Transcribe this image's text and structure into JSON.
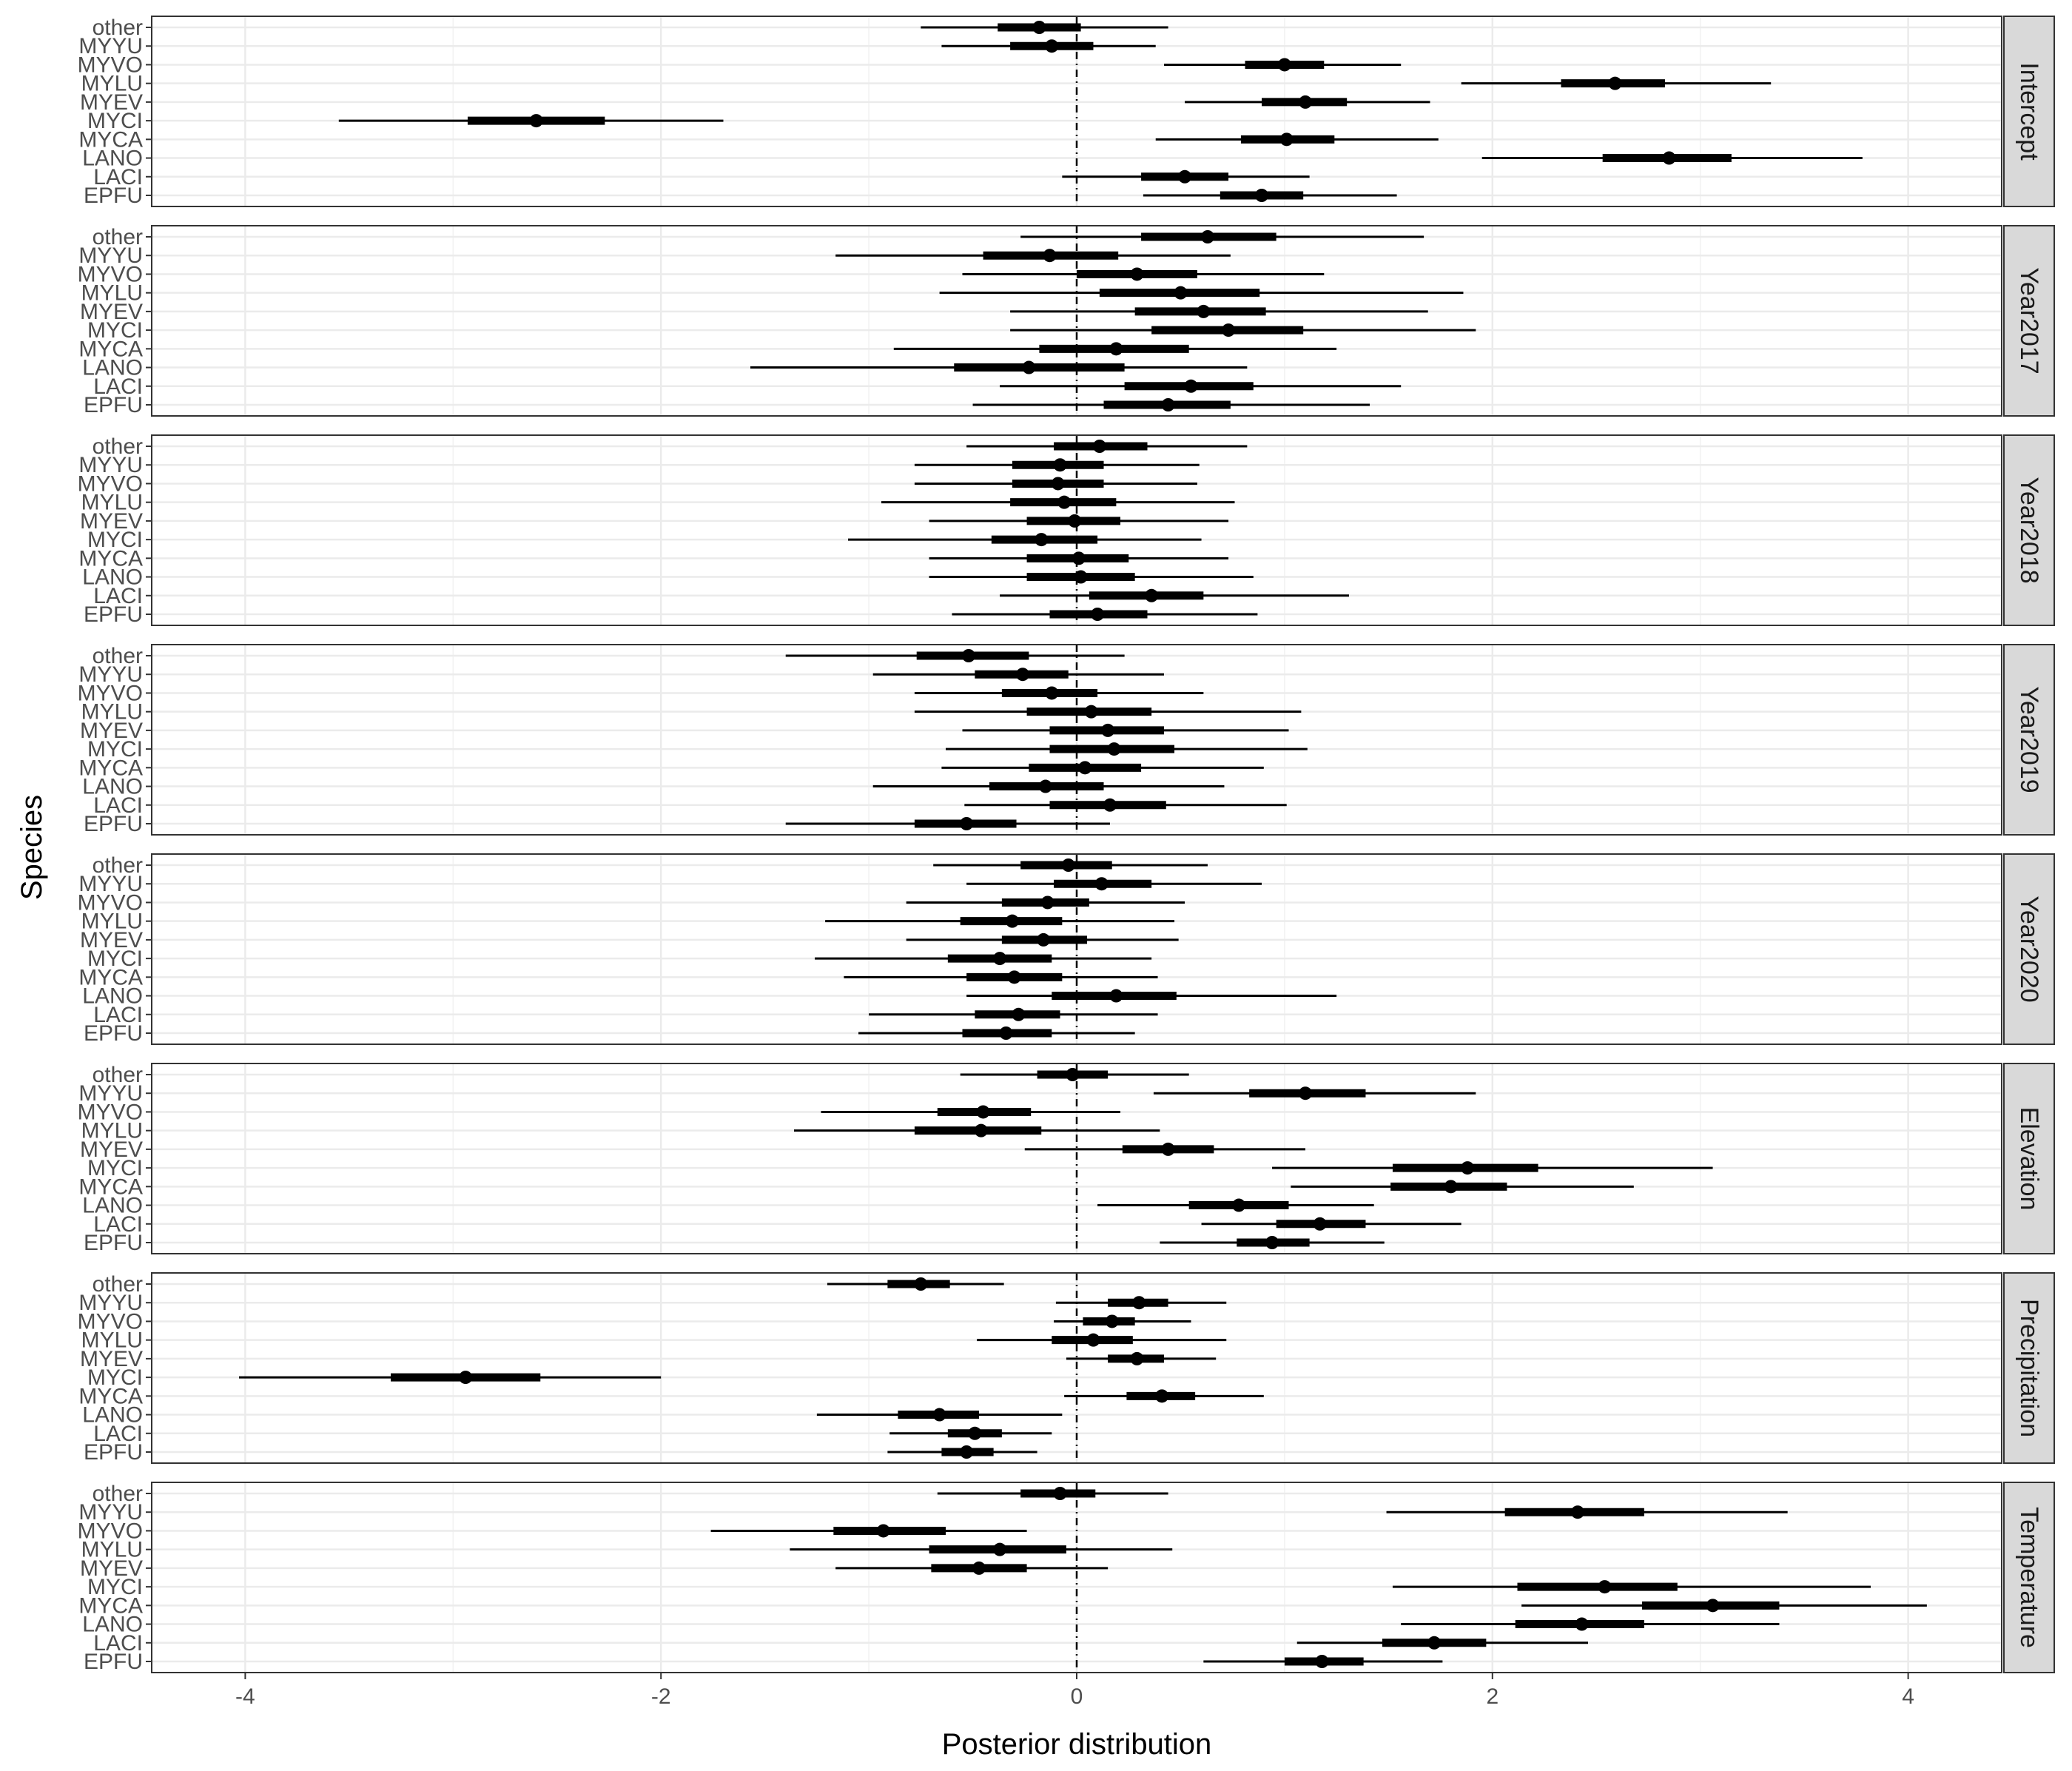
{
  "chart_data": {
    "type": "pointrange-facet",
    "xlabel": "Posterior distribution",
    "ylabel": "Species",
    "xlim": [
      -4.45,
      4.45
    ],
    "x_ticks": [
      -4,
      -2,
      0,
      2,
      4
    ],
    "x_tick_labels": [
      "-4",
      "-2",
      "0",
      "2",
      "4"
    ],
    "reference_line": 0,
    "grid": true,
    "species": [
      "other",
      "MYYU",
      "MYVO",
      "MYLU",
      "MYEV",
      "MYCI",
      "MYCA",
      "LANO",
      "LACI",
      "EPFU"
    ],
    "interval_columns": [
      "lo_outer",
      "lo_inner",
      "median",
      "hi_inner",
      "hi_outer"
    ],
    "panels": [
      {
        "name": "Intercept",
        "rows": [
          [
            -0.75,
            -0.38,
            -0.18,
            0.02,
            0.44
          ],
          [
            -0.65,
            -0.32,
            -0.12,
            0.08,
            0.38
          ],
          [
            0.42,
            0.81,
            1.0,
            1.19,
            1.56
          ],
          [
            1.85,
            2.33,
            2.59,
            2.83,
            3.34
          ],
          [
            0.52,
            0.89,
            1.1,
            1.3,
            1.7
          ],
          [
            -3.55,
            -2.93,
            -2.6,
            -2.27,
            -1.7
          ],
          [
            0.38,
            0.79,
            1.01,
            1.24,
            1.74
          ],
          [
            1.95,
            2.53,
            2.85,
            3.15,
            3.78
          ],
          [
            -0.07,
            0.31,
            0.52,
            0.73,
            1.12
          ],
          [
            0.32,
            0.69,
            0.89,
            1.09,
            1.54
          ]
        ]
      },
      {
        "name": "Year2017",
        "rows": [
          [
            -0.27,
            0.31,
            0.63,
            0.96,
            1.67
          ],
          [
            -1.16,
            -0.45,
            -0.13,
            0.2,
            0.74
          ],
          [
            -0.55,
            0.0,
            0.29,
            0.58,
            1.19
          ],
          [
            -0.66,
            0.11,
            0.5,
            0.88,
            1.86
          ],
          [
            -0.32,
            0.28,
            0.61,
            0.91,
            1.69
          ],
          [
            -0.32,
            0.36,
            0.73,
            1.09,
            1.92
          ],
          [
            -0.88,
            -0.18,
            0.19,
            0.54,
            1.25
          ],
          [
            -1.57,
            -0.59,
            -0.23,
            0.23,
            0.82
          ],
          [
            -0.37,
            0.23,
            0.55,
            0.85,
            1.56
          ],
          [
            -0.5,
            0.13,
            0.44,
            0.74,
            1.41
          ]
        ]
      },
      {
        "name": "Year2018",
        "rows": [
          [
            -0.53,
            -0.11,
            0.11,
            0.34,
            0.82
          ],
          [
            -0.78,
            -0.31,
            -0.08,
            0.13,
            0.59
          ],
          [
            -0.78,
            -0.31,
            -0.09,
            0.13,
            0.58
          ],
          [
            -0.94,
            -0.32,
            -0.06,
            0.19,
            0.76
          ],
          [
            -0.71,
            -0.24,
            -0.01,
            0.21,
            0.73
          ],
          [
            -1.1,
            -0.41,
            -0.17,
            0.1,
            0.6
          ],
          [
            -0.71,
            -0.24,
            0.01,
            0.25,
            0.73
          ],
          [
            -0.71,
            -0.24,
            0.02,
            0.28,
            0.85
          ],
          [
            -0.37,
            0.06,
            0.36,
            0.61,
            1.31
          ],
          [
            -0.6,
            -0.13,
            0.1,
            0.34,
            0.87
          ]
        ]
      },
      {
        "name": "Year2019",
        "rows": [
          [
            -1.4,
            -0.77,
            -0.52,
            -0.23,
            0.23
          ],
          [
            -0.98,
            -0.49,
            -0.26,
            -0.04,
            0.42
          ],
          [
            -0.78,
            -0.36,
            -0.12,
            0.1,
            0.61
          ],
          [
            -0.78,
            -0.24,
            0.07,
            0.36,
            1.08
          ],
          [
            -0.55,
            -0.13,
            0.15,
            0.42,
            1.02
          ],
          [
            -0.63,
            -0.13,
            0.18,
            0.47,
            1.11
          ],
          [
            -0.65,
            -0.23,
            0.04,
            0.31,
            0.9
          ],
          [
            -0.98,
            -0.42,
            -0.15,
            0.13,
            0.71
          ],
          [
            -0.54,
            -0.13,
            0.16,
            0.43,
            1.01
          ],
          [
            -1.4,
            -0.78,
            -0.53,
            -0.29,
            0.16
          ]
        ]
      },
      {
        "name": "Year2020",
        "rows": [
          [
            -0.69,
            -0.27,
            -0.04,
            0.17,
            0.63
          ],
          [
            -0.53,
            -0.11,
            0.12,
            0.36,
            0.89
          ],
          [
            -0.82,
            -0.36,
            -0.14,
            0.06,
            0.52
          ],
          [
            -1.21,
            -0.56,
            -0.31,
            -0.07,
            0.47
          ],
          [
            -0.82,
            -0.36,
            -0.16,
            0.05,
            0.49
          ],
          [
            -1.26,
            -0.62,
            -0.37,
            -0.12,
            0.36
          ],
          [
            -1.12,
            -0.53,
            -0.3,
            -0.07,
            0.39
          ],
          [
            -0.53,
            -0.12,
            0.19,
            0.48,
            1.25
          ],
          [
            -1.0,
            -0.49,
            -0.28,
            -0.08,
            0.39
          ],
          [
            -1.05,
            -0.55,
            -0.34,
            -0.12,
            0.28
          ]
        ]
      },
      {
        "name": "Elevation",
        "rows": [
          [
            -0.56,
            -0.19,
            -0.02,
            0.15,
            0.54
          ],
          [
            0.37,
            0.83,
            1.1,
            1.39,
            1.92
          ],
          [
            -1.23,
            -0.67,
            -0.45,
            -0.22,
            0.21
          ],
          [
            -1.36,
            -0.78,
            -0.46,
            -0.17,
            0.4
          ],
          [
            -0.25,
            0.22,
            0.44,
            0.66,
            1.1
          ],
          [
            0.94,
            1.52,
            1.88,
            2.22,
            3.06
          ],
          [
            1.03,
            1.51,
            1.8,
            2.07,
            2.68
          ],
          [
            0.1,
            0.54,
            0.78,
            1.02,
            1.43
          ],
          [
            0.6,
            0.96,
            1.17,
            1.39,
            1.85
          ],
          [
            0.4,
            0.77,
            0.94,
            1.12,
            1.48
          ]
        ]
      },
      {
        "name": "Precipitation",
        "rows": [
          [
            -1.2,
            -0.91,
            -0.75,
            -0.61,
            -0.35
          ],
          [
            -0.1,
            0.15,
            0.3,
            0.44,
            0.72
          ],
          [
            -0.11,
            0.03,
            0.17,
            0.28,
            0.55
          ],
          [
            -0.48,
            -0.12,
            0.08,
            0.27,
            0.72
          ],
          [
            -0.05,
            0.15,
            0.29,
            0.42,
            0.67
          ],
          [
            -4.03,
            -3.3,
            -2.94,
            -2.58,
            -2.0
          ],
          [
            -0.06,
            0.24,
            0.41,
            0.57,
            0.9
          ],
          [
            -1.25,
            -0.86,
            -0.66,
            -0.47,
            -0.07
          ],
          [
            -0.9,
            -0.62,
            -0.49,
            -0.36,
            -0.12
          ],
          [
            -0.91,
            -0.65,
            -0.53,
            -0.4,
            -0.19
          ]
        ]
      },
      {
        "name": "Temperature",
        "rows": [
          [
            -0.67,
            -0.27,
            -0.08,
            0.09,
            0.44
          ],
          [
            1.49,
            2.06,
            2.41,
            2.73,
            3.42
          ],
          [
            -1.76,
            -1.17,
            -0.93,
            -0.63,
            -0.24
          ],
          [
            -1.38,
            -0.71,
            -0.37,
            -0.05,
            0.46
          ],
          [
            -1.16,
            -0.7,
            -0.47,
            -0.24,
            0.15
          ],
          [
            1.52,
            2.12,
            2.54,
            2.89,
            3.82
          ],
          [
            2.14,
            2.72,
            3.06,
            3.38,
            4.09
          ],
          [
            1.56,
            2.11,
            2.43,
            2.73,
            3.38
          ],
          [
            1.06,
            1.47,
            1.72,
            1.97,
            2.46
          ],
          [
            0.61,
            1.0,
            1.18,
            1.38,
            1.76
          ]
        ]
      }
    ]
  }
}
